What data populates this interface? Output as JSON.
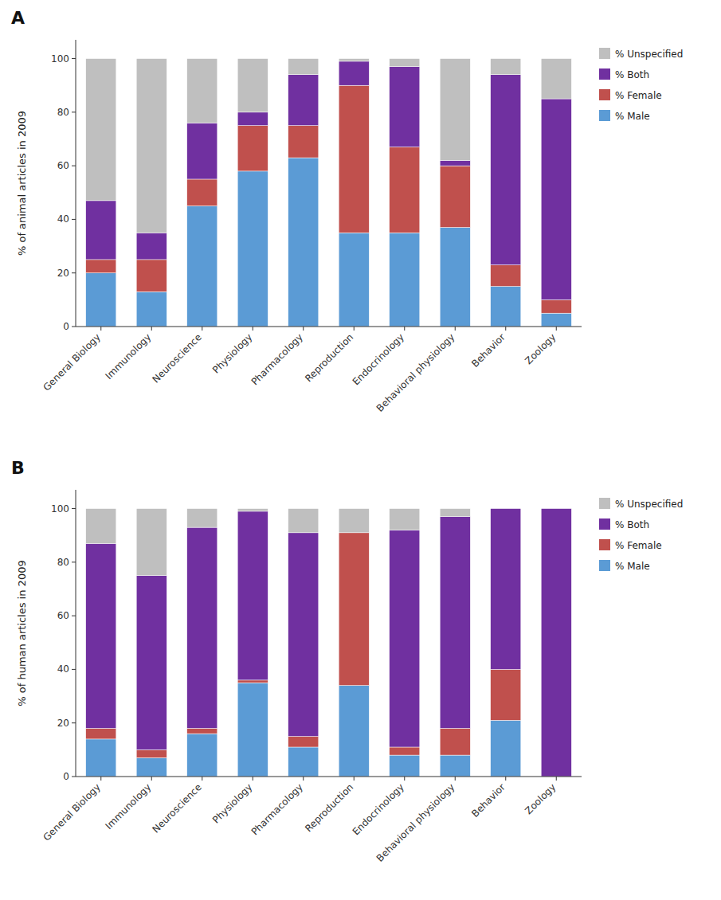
{
  "chart_data": [
    {
      "type": "bar",
      "title": "A",
      "stacked": true,
      "grid": false,
      "legend": "right",
      "categories": [
        "General Biology",
        "Immunology",
        "Neuroscience",
        "Physiology",
        "Pharmacology",
        "Reproduction",
        "Endocrinology",
        "Behavioral physiology",
        "Behavior",
        "Zoology"
      ],
      "ylabel": "% of animal articles in 2009",
      "ylim": [
        0,
        107
      ],
      "yticks": [
        0,
        20,
        40,
        60,
        80,
        100
      ],
      "series": [
        {
          "name": "% Male",
          "color": "#5b9bd5",
          "values": [
            20,
            13,
            45,
            58,
            63,
            35,
            35,
            37,
            15,
            5
          ]
        },
        {
          "name": "% Female",
          "color": "#c0504d",
          "values": [
            5,
            12,
            10,
            17,
            12,
            55,
            32,
            23,
            8,
            5
          ]
        },
        {
          "name": "% Both",
          "color": "#7030a0",
          "values": [
            22,
            10,
            21,
            5,
            19,
            9,
            30,
            2,
            71,
            75
          ]
        },
        {
          "name": "% Unspecified",
          "color": "#bfbfbf",
          "values": [
            53,
            65,
            24,
            20,
            6,
            1,
            3,
            38,
            6,
            15
          ]
        }
      ]
    },
    {
      "type": "bar",
      "title": "B",
      "stacked": true,
      "grid": false,
      "legend": "right",
      "categories": [
        "General Biology",
        "Immunology",
        "Neuroscience",
        "Physiology",
        "Pharmacology",
        "Reproduction",
        "Endocrinology",
        "Behavioral physiology",
        "Behavior",
        "Zoology"
      ],
      "ylabel": "% of human articles in 2009",
      "ylim": [
        0,
        107
      ],
      "yticks": [
        0,
        20,
        40,
        60,
        80,
        100
      ],
      "series": [
        {
          "name": "% Male",
          "color": "#5b9bd5",
          "values": [
            14,
            7,
            16,
            35,
            11,
            34,
            8,
            8,
            21,
            0
          ]
        },
        {
          "name": "% Female",
          "color": "#c0504d",
          "values": [
            4,
            3,
            2,
            1,
            4,
            57,
            3,
            10,
            19,
            0
          ]
        },
        {
          "name": "% Both",
          "color": "#7030a0",
          "values": [
            69,
            65,
            75,
            63,
            76,
            0,
            81,
            79,
            60,
            100
          ]
        },
        {
          "name": "% Unspecified",
          "color": "#bfbfbf",
          "values": [
            13,
            25,
            7,
            1,
            9,
            9,
            8,
            3,
            0,
            0
          ]
        }
      ]
    }
  ]
}
